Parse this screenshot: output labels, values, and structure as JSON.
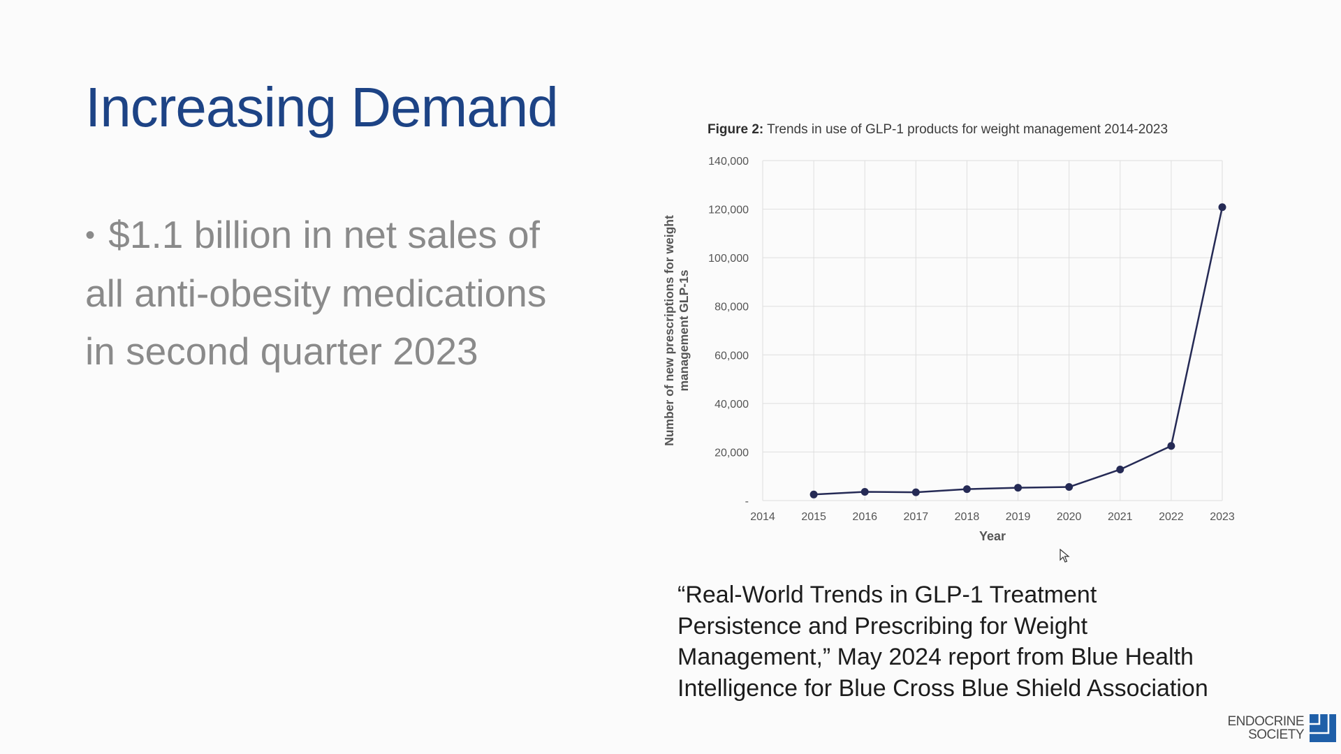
{
  "slide": {
    "title": "Increasing Demand",
    "bullet_lines": [
      "$1.1 billion in net sales of",
      "all anti-obesity medications",
      "in second quarter 2023"
    ],
    "bullet_symbol": "•"
  },
  "figure": {
    "label": "Figure 2:",
    "caption": "Trends in use of GLP-1 products for weight management 2014-2023"
  },
  "chart_data": {
    "type": "line",
    "x": [
      "2015",
      "2016",
      "2017",
      "2018",
      "2019",
      "2020",
      "2021",
      "2022",
      "2023"
    ],
    "values": [
      2500,
      3600,
      3400,
      4700,
      5300,
      5600,
      12800,
      22500,
      120800
    ],
    "x_tick_labels": [
      "2014",
      "2015",
      "2016",
      "2017",
      "2018",
      "2019",
      "2020",
      "2021",
      "2022",
      "2023"
    ],
    "y_ticks": [
      0,
      20000,
      40000,
      60000,
      80000,
      100000,
      120000,
      140000
    ],
    "y_tick_labels": [
      "-",
      "20,000",
      "40,000",
      "60,000",
      "80,000",
      "100,000",
      "120,000",
      "140,000"
    ],
    "xlabel": "Year",
    "ylabel_lines": [
      "Number of new prescriptions for weight",
      "management GLP-1s"
    ],
    "ylim": [
      0,
      140000
    ],
    "grid": true,
    "line_color": "#252a55",
    "grid_color": "#dedede"
  },
  "citation_lines": [
    "“Real-World Trends in GLP-1 Treatment",
    "Persistence and Prescribing for Weight",
    "Management,” May 2024 report from Blue Health",
    "Intelligence for Blue Cross Blue Shield Association"
  ],
  "logo": {
    "line1": "ENDOCRINE",
    "line2": "SOCIETY",
    "color": "#1f5fa8"
  },
  "icons": {
    "cursor": "mouse-pointer-icon",
    "logo_mark": "endocrine-society-logo-icon"
  }
}
